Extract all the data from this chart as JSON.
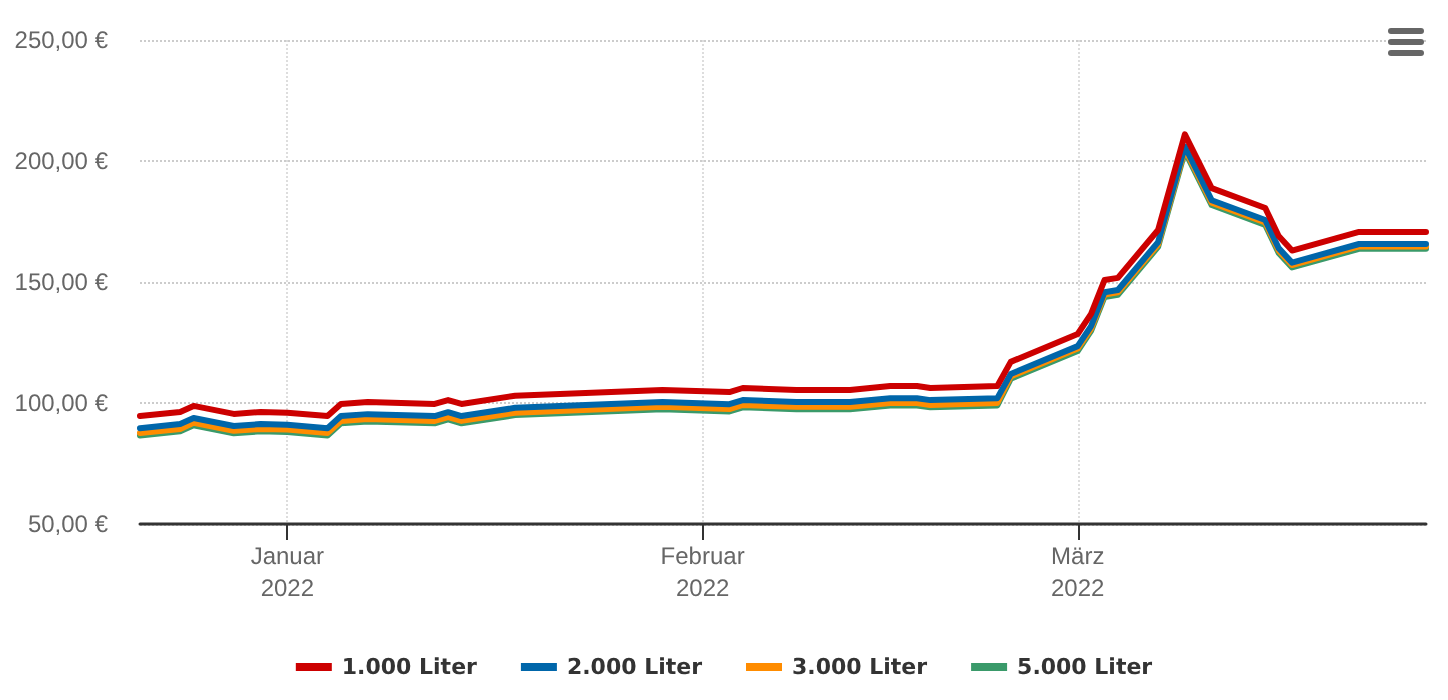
{
  "chart_data": {
    "type": "line",
    "x": [
      "2021-12-21",
      "2021-12-24",
      "2021-12-25",
      "2021-12-28",
      "2021-12-30",
      "2022-01-01",
      "2022-01-04",
      "2022-01-05",
      "2022-01-07",
      "2022-01-12",
      "2022-01-13",
      "2022-01-14",
      "2022-01-18",
      "2022-01-29",
      "2022-02-03",
      "2022-02-04",
      "2022-02-08",
      "2022-02-12",
      "2022-02-15",
      "2022-02-17",
      "2022-02-18",
      "2022-02-23",
      "2022-02-24",
      "2022-03-01",
      "2022-03-02",
      "2022-03-03",
      "2022-03-04",
      "2022-03-07",
      "2022-03-09",
      "2022-03-11",
      "2022-03-15",
      "2022-03-16",
      "2022-03-17",
      "2022-03-22",
      "2022-03-27"
    ],
    "series": [
      {
        "name": "1.000 Liter",
        "color": "#cc0000",
        "values": [
          94.6,
          96.3,
          98.8,
          95.5,
          96.3,
          96,
          94.6,
          99.6,
          100.4,
          99.6,
          101.2,
          99.6,
          103,
          105.4,
          104.5,
          106.2,
          105.4,
          105.4,
          107,
          107,
          106.2,
          107,
          117,
          128.5,
          136.8,
          150.8,
          151.7,
          171.5,
          211,
          188.8,
          180.6,
          169,
          163,
          170.7,
          170.7
        ]
      },
      {
        "name": "2.000 Liter",
        "color": "#0066aa",
        "values": [
          89.6,
          91.3,
          93.8,
          90.5,
          91.3,
          91,
          89.6,
          94.6,
          95.4,
          94.6,
          96.2,
          94.6,
          98,
          100.4,
          99.5,
          101.2,
          100.4,
          100.4,
          102,
          102,
          101.2,
          102,
          112,
          123.5,
          131.8,
          145.8,
          146.7,
          166.5,
          206,
          183.8,
          175.6,
          164,
          158,
          165.7,
          165.7
        ]
      },
      {
        "name": "3.000 Liter",
        "color": "#ff8c00",
        "values": [
          87.6,
          89.3,
          91.8,
          88.5,
          89.3,
          89,
          87.6,
          92.6,
          93.4,
          92.6,
          94.2,
          92.6,
          96,
          98.4,
          97.5,
          99.2,
          98.4,
          98.4,
          100,
          100,
          99.2,
          100,
          111,
          122.5,
          130.8,
          144.8,
          145.7,
          165.5,
          205,
          182.8,
          174.6,
          163,
          157,
          164.7,
          164.7
        ]
      },
      {
        "name": "5.000 Liter",
        "color": "#3a9a6a",
        "values": [
          86.6,
          88.3,
          90.8,
          87.5,
          88.3,
          88,
          86.6,
          91.6,
          92.4,
          91.6,
          93.2,
          91.6,
          95,
          97.4,
          96.5,
          98.2,
          97.4,
          97.4,
          99,
          99,
          98.2,
          99,
          110,
          121.5,
          129.8,
          143.8,
          144.7,
          164.5,
          204,
          181.8,
          173.6,
          162,
          156,
          163.7,
          163.7
        ]
      }
    ],
    "xlim": [
      "2021-12-21",
      "2022-03-27"
    ],
    "xticks": [
      {
        "value": "2022-01-01",
        "label": "Januar\n2022"
      },
      {
        "value": "2022-02-01",
        "label": "Februar\n2022"
      },
      {
        "value": "2022-03-01",
        "label": "März\n2022"
      }
    ],
    "ylim": [
      50,
      250
    ],
    "yticks": [
      {
        "value": 50,
        "label": "50,00 €"
      },
      {
        "value": 100,
        "label": "100,00 €"
      },
      {
        "value": 150,
        "label": "150,00 €"
      },
      {
        "value": 200,
        "label": "200,00 €"
      },
      {
        "value": 250,
        "label": "250,00 €"
      }
    ],
    "grid": true,
    "legend": "bottom",
    "marker": "none",
    "line_style": "solid"
  }
}
